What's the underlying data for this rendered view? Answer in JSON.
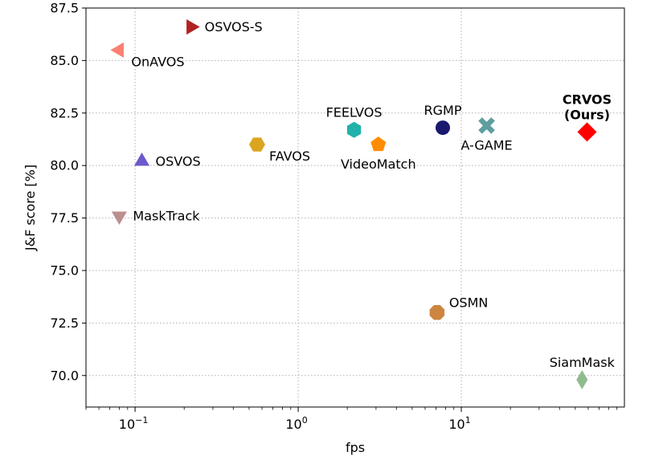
{
  "chart_data": {
    "type": "scatter",
    "title": "",
    "xlabel": "fps",
    "ylabel": "J&F score [%]",
    "xscale": "log",
    "xlim": [
      0.05,
      100
    ],
    "ylim": [
      68.5,
      87.5
    ],
    "grid": true,
    "y_ticks": [
      {
        "value": 70.0,
        "label": "70.0"
      },
      {
        "value": 72.5,
        "label": "72.5"
      },
      {
        "value": 75.0,
        "label": "75.0"
      },
      {
        "value": 77.5,
        "label": "77.5"
      },
      {
        "value": 80.0,
        "label": "80.0"
      },
      {
        "value": 82.5,
        "label": "82.5"
      },
      {
        "value": 85.0,
        "label": "85.0"
      },
      {
        "value": 87.5,
        "label": "87.5"
      }
    ],
    "x_ticks": [
      {
        "value": 0.1,
        "base": "10",
        "exp": "−1"
      },
      {
        "value": 1,
        "base": "10",
        "exp": "0"
      },
      {
        "value": 10,
        "base": "10",
        "exp": "1"
      }
    ],
    "points": [
      {
        "name": "OSVOS-S",
        "fps": 0.22,
        "score": 86.6,
        "marker": "triangle-right",
        "color": "#b22222",
        "label_pos": "right"
      },
      {
        "name": "OnAVOS",
        "fps": 0.08,
        "score": 85.5,
        "marker": "triangle-left",
        "color": "#fa8072",
        "label_pos": "below-right"
      },
      {
        "name": "OSVOS",
        "fps": 0.11,
        "score": 80.2,
        "marker": "triangle-up",
        "color": "#6a5acd",
        "label_pos": "right"
      },
      {
        "name": "MaskTrack",
        "fps": 0.08,
        "score": 77.6,
        "marker": "triangle-down",
        "color": "#bc8f8f",
        "label_pos": "right"
      },
      {
        "name": "FAVOS",
        "fps": 0.56,
        "score": 81.0,
        "marker": "hexagon-flat",
        "color": "#daa520",
        "label_pos": "below-right"
      },
      {
        "name": "FEELVOS",
        "fps": 2.2,
        "score": 81.7,
        "marker": "hexagon",
        "color": "#20b2aa",
        "label_pos": "above"
      },
      {
        "name": "VideoMatch",
        "fps": 3.1,
        "score": 81.0,
        "marker": "pentagon",
        "color": "#ff8c00",
        "label_pos": "below"
      },
      {
        "name": "RGMP",
        "fps": 7.7,
        "score": 81.8,
        "marker": "circle",
        "color": "#191970",
        "label_pos": "above"
      },
      {
        "name": "A-GAME",
        "fps": 14.3,
        "score": 81.9,
        "marker": "x",
        "color": "#5f9ea0",
        "label_pos": "below"
      },
      {
        "name": "CRVOS\n(Ours)",
        "fps": 59,
        "score": 81.6,
        "marker": "diamond",
        "color": "#ff0000",
        "label_pos": "above",
        "bold": true
      },
      {
        "name": "OSMN",
        "fps": 7.1,
        "score": 73.0,
        "marker": "octagon",
        "color": "#cd853f",
        "label_pos": "above-right"
      },
      {
        "name": "SiamMask",
        "fps": 55,
        "score": 69.8,
        "marker": "thin-diamond",
        "color": "#8fbc8f",
        "label_pos": "above"
      }
    ]
  }
}
